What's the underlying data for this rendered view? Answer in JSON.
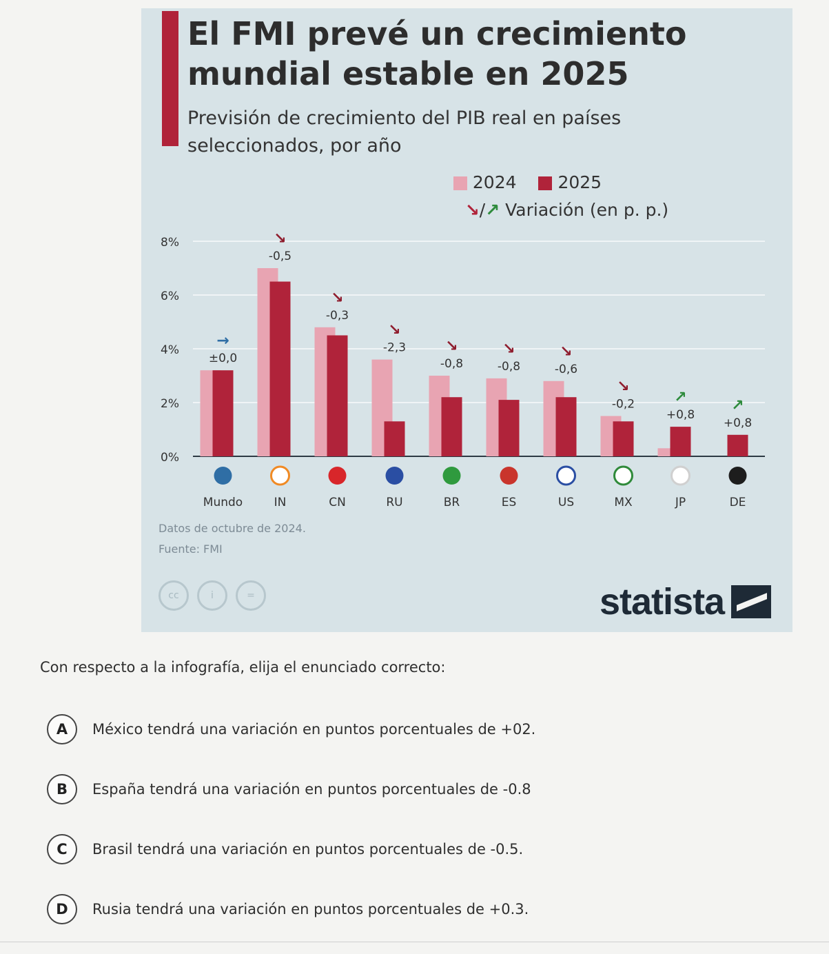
{
  "infographic": {
    "title": "El FMI prevé un crecimiento mundial estable en 2025",
    "subtitle": "Previsión de crecimiento del PIB real en países seleccionados, por año",
    "legend_2024": "2024",
    "legend_2025": "2025",
    "legend_variation": "Variación (en p. p.)",
    "footnote": "Datos de octubre de 2024.",
    "source": "Fuente: FMI",
    "brand": "statista",
    "cc_icons": [
      "cc",
      "i",
      "="
    ]
  },
  "chart_data": {
    "type": "bar",
    "title": "El FMI prevé un crecimiento mundial estable en 2025",
    "subtitle": "Previsión de crecimiento del PIB real en países seleccionados, por año",
    "categories": [
      "Mundo",
      "IN",
      "CN",
      "RU",
      "BR",
      "ES",
      "US",
      "MX",
      "JP",
      "DE"
    ],
    "series": [
      {
        "name": "2024",
        "color": "#e8a4b2",
        "values": [
          3.2,
          7.0,
          4.8,
          3.6,
          3.0,
          2.9,
          2.8,
          1.5,
          0.3,
          0.0
        ]
      },
      {
        "name": "2025",
        "color": "#b0233a",
        "values": [
          3.2,
          6.5,
          4.5,
          1.3,
          2.2,
          2.1,
          2.2,
          1.3,
          1.1,
          0.8
        ]
      }
    ],
    "variation_labels": [
      "±0,0",
      "-0,5",
      "-0,3",
      "-2,3",
      "-0,8",
      "-0,8",
      "-0,6",
      "-0,2",
      "+0,8",
      "+0,8"
    ],
    "variation_direction": [
      "flat",
      "down",
      "down",
      "down",
      "down",
      "down",
      "down",
      "down",
      "up",
      "up"
    ],
    "yticks": [
      "0%",
      "2%",
      "4%",
      "6%",
      "8%"
    ],
    "ytick_values": [
      0,
      2,
      4,
      6,
      8
    ],
    "ylim": [
      0,
      8
    ],
    "grid": true,
    "legend_position": "top-center",
    "flag_icons": [
      "globe-icon",
      "india-flag-icon",
      "china-flag-icon",
      "russia-flag-icon",
      "brazil-flag-icon",
      "spain-flag-icon",
      "usa-flag-icon",
      "mexico-flag-icon",
      "japan-flag-icon",
      "germany-flag-icon"
    ]
  },
  "quiz": {
    "question": "Con respecto a la infografía, elija el enunciado correcto:",
    "options": [
      {
        "letter": "A",
        "text": "México tendrá una variación en puntos porcentuales de +02."
      },
      {
        "letter": "B",
        "text": "España tendrá una variación en puntos porcentuales de -0.8"
      },
      {
        "letter": "C",
        "text": "Brasil tendrá una variación en puntos porcentuales de -0.5."
      },
      {
        "letter": "D",
        "text": "Rusia tendrá una variación en puntos porcentuales de +0.3."
      }
    ]
  },
  "colors": {
    "accent": "#b0233a",
    "bar_2024": "#e8a4b2",
    "bar_2025": "#b0233a",
    "arrow_up": "#2e8b3c",
    "background": "#d7e3e7"
  }
}
